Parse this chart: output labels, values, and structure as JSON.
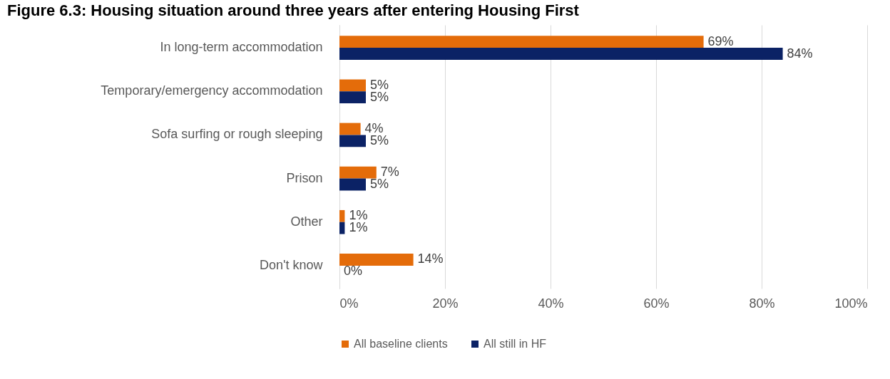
{
  "chart_data": {
    "type": "bar",
    "orientation": "horizontal",
    "title": "Figure 6.3: Housing situation around three years after entering Housing First",
    "categories": [
      "In long-term accommodation",
      "Temporary/emergency accommodation",
      "Sofa surfing or rough sleeping",
      "Prison",
      "Other",
      "Don't know"
    ],
    "series": [
      {
        "name": "All baseline clients",
        "color": "#e46c0a",
        "values": [
          69,
          5,
          4,
          7,
          1,
          14
        ]
      },
      {
        "name": "All still in HF",
        "color": "#0b2265",
        "values": [
          84,
          5,
          5,
          5,
          1,
          0
        ]
      }
    ],
    "xlim": [
      0,
      100
    ],
    "xticks": [
      {
        "value": 0,
        "label": "0%"
      },
      {
        "value": 20,
        "label": "20%"
      },
      {
        "value": 40,
        "label": "40%"
      },
      {
        "value": 60,
        "label": "60%"
      },
      {
        "value": 80,
        "label": "80%"
      },
      {
        "value": 100,
        "label": "100%"
      }
    ],
    "value_labels": [
      [
        "69%",
        "5%",
        "4%",
        "7%",
        "1%",
        "14%"
      ],
      [
        "84%",
        "5%",
        "5%",
        "5%",
        "1%",
        "0%"
      ]
    ],
    "grid": "x",
    "legend": "bottom"
  }
}
